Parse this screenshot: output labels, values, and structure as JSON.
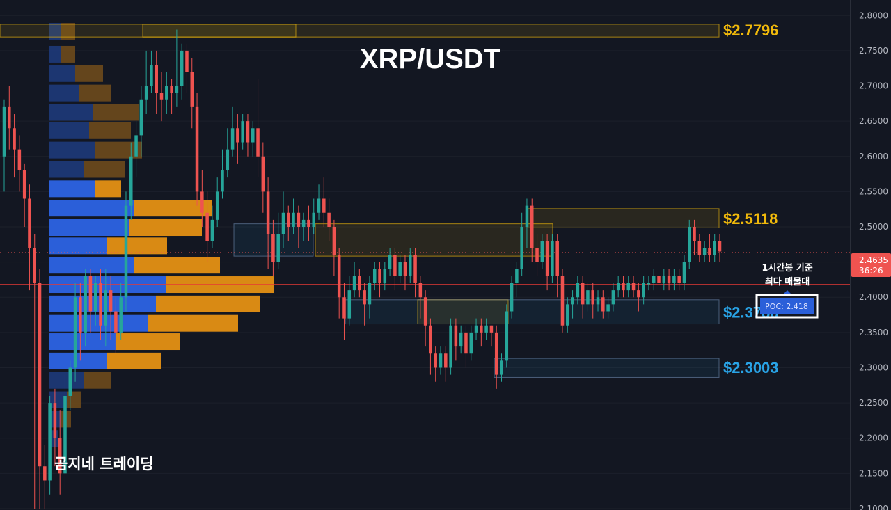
{
  "chart_data": {
    "type": "candlestick",
    "title": "XRP/USDT",
    "ylim": [
      2.098,
      2.822
    ],
    "y_ticks": [
      "2.8000",
      "2.7500",
      "2.7000",
      "2.6500",
      "2.6000",
      "2.5500",
      "2.5000",
      "2.4500",
      "2.4000",
      "2.3500",
      "2.3000",
      "2.2500",
      "2.2000",
      "2.1500",
      "2.1000"
    ],
    "current_price": {
      "value": 2.4635,
      "label": "2.4635",
      "countdown": "36:26"
    },
    "levels": [
      {
        "value": 2.7796,
        "label": "$2.7796",
        "color": "#f0b90b"
      },
      {
        "value": 2.5118,
        "label": "$2.5118",
        "color": "#f0b90b"
      },
      {
        "value": 2.3788,
        "label": "$2.3788",
        "color": "#29a3e6"
      },
      {
        "value": 2.3003,
        "label": "$2.3003",
        "color": "#29a3e6"
      }
    ],
    "poc": {
      "value": 2.418,
      "label": "POC: 2.418"
    },
    "poc_note": [
      "1시간봉 기준",
      "최다 매물대"
    ],
    "watermark": "곰지네 트레이딩",
    "zones": [
      {
        "type": "supply",
        "x0": 0,
        "x1": 425,
        "y0": 2.7695,
        "y1": 2.7875
      },
      {
        "type": "supply",
        "x0": 205,
        "x1": 1033,
        "y0": 2.7695,
        "y1": 2.7875
      },
      {
        "type": "supply",
        "x0": 757,
        "x1": 1033,
        "y0": 2.4986,
        "y1": 2.5258
      },
      {
        "type": "supply",
        "x0": 453,
        "x1": 794,
        "y0": 2.4584,
        "y1": 2.5043
      },
      {
        "type": "demand",
        "x0": 336,
        "x1": 450,
        "y0": 2.4584,
        "y1": 2.5043
      },
      {
        "type": "supply",
        "x0": 600,
        "x1": 730,
        "y0": 2.3622,
        "y1": 2.3965
      },
      {
        "type": "demand",
        "x0": 496,
        "x1": 1033,
        "y0": 2.3622,
        "y1": 2.3965
      },
      {
        "type": "demand",
        "x0": 710,
        "x1": 1033,
        "y0": 2.2862,
        "y1": 2.3132
      }
    ],
    "volume_profile": [
      {
        "price": 2.7775,
        "buy": 18,
        "sell": 20
      },
      {
        "price": 2.745,
        "buy": 18,
        "sell": 20
      },
      {
        "price": 2.7175,
        "buy": 38,
        "sell": 40
      },
      {
        "price": 2.69,
        "buy": 44,
        "sell": 46
      },
      {
        "price": 2.6625,
        "buy": 64,
        "sell": 66
      },
      {
        "price": 2.6365,
        "buy": 58,
        "sell": 60
      },
      {
        "price": 2.609,
        "buy": 66,
        "sell": 68
      },
      {
        "price": 2.5815,
        "buy": 50,
        "sell": 60
      },
      {
        "price": 2.554,
        "buy": 66,
        "sell": 38
      },
      {
        "price": 2.5265,
        "buy": 122,
        "sell": 112
      },
      {
        "price": 2.499,
        "buy": 116,
        "sell": 104
      },
      {
        "price": 2.473,
        "buy": 84,
        "sell": 86
      },
      {
        "price": 2.4455,
        "buy": 122,
        "sell": 124
      },
      {
        "price": 2.418,
        "buy": 168,
        "sell": 156
      },
      {
        "price": 2.3905,
        "buy": 154,
        "sell": 150
      },
      {
        "price": 2.363,
        "buy": 142,
        "sell": 130
      },
      {
        "price": 2.337,
        "buy": 96,
        "sell": 92
      },
      {
        "price": 2.3095,
        "buy": 84,
        "sell": 78
      },
      {
        "price": 2.282,
        "buy": 50,
        "sell": 40
      },
      {
        "price": 2.2545,
        "buy": 26,
        "sell": 20
      },
      {
        "price": 2.227,
        "buy": 18,
        "sell": 14
      },
      {
        "price": 2.1995,
        "buy": 14,
        "sell": 0
      }
    ],
    "candles": [
      [
        2.6,
        2.67,
        2.55,
        2.68
      ],
      [
        2.67,
        2.64,
        2.61,
        2.7
      ],
      [
        2.64,
        2.61,
        2.57,
        2.66
      ],
      [
        2.61,
        2.58,
        2.55,
        2.63
      ],
      [
        2.58,
        2.54,
        2.5,
        2.59
      ],
      [
        2.54,
        2.47,
        2.41,
        2.56
      ],
      [
        2.47,
        2.42,
        2.1,
        2.49
      ],
      [
        2.42,
        2.16,
        2.1,
        2.44
      ],
      [
        2.16,
        2.14,
        2.1,
        2.19
      ],
      [
        2.14,
        2.25,
        2.12,
        2.26
      ],
      [
        2.25,
        2.2,
        2.16,
        2.27
      ],
      [
        2.2,
        2.15,
        2.12,
        2.24
      ],
      [
        2.15,
        2.26,
        2.13,
        2.29
      ],
      [
        2.26,
        2.3,
        2.24,
        2.31
      ],
      [
        2.3,
        2.4,
        2.28,
        2.42
      ],
      [
        2.4,
        2.35,
        2.31,
        2.42
      ],
      [
        2.35,
        2.43,
        2.33,
        2.44
      ],
      [
        2.43,
        2.38,
        2.35,
        2.44
      ],
      [
        2.38,
        2.42,
        2.36,
        2.43
      ],
      [
        2.42,
        2.36,
        2.34,
        2.44
      ],
      [
        2.36,
        2.41,
        2.33,
        2.44
      ],
      [
        2.41,
        2.38,
        2.34,
        2.43
      ],
      [
        2.38,
        2.35,
        2.32,
        2.4
      ],
      [
        2.35,
        2.4,
        2.34,
        2.42
      ],
      [
        2.4,
        2.53,
        2.38,
        2.55
      ],
      [
        2.53,
        2.6,
        2.51,
        2.62
      ],
      [
        2.6,
        2.63,
        2.57,
        2.65
      ],
      [
        2.63,
        2.68,
        2.6,
        2.7
      ],
      [
        2.68,
        2.7,
        2.66,
        2.75
      ],
      [
        2.7,
        2.73,
        2.69,
        2.75
      ],
      [
        2.73,
        2.69,
        2.66,
        2.75
      ],
      [
        2.69,
        2.68,
        2.65,
        2.72
      ],
      [
        2.68,
        2.7,
        2.66,
        2.72
      ],
      [
        2.7,
        2.69,
        2.66,
        2.71
      ],
      [
        2.69,
        2.7,
        2.67,
        2.78
      ],
      [
        2.7,
        2.75,
        2.68,
        2.76
      ],
      [
        2.75,
        2.72,
        2.69,
        2.76
      ],
      [
        2.72,
        2.67,
        2.64,
        2.74
      ],
      [
        2.67,
        2.55,
        2.53,
        2.69
      ],
      [
        2.55,
        2.52,
        2.5,
        2.58
      ],
      [
        2.52,
        2.48,
        2.45,
        2.55
      ],
      [
        2.48,
        2.51,
        2.47,
        2.53
      ],
      [
        2.51,
        2.55,
        2.5,
        2.57
      ],
      [
        2.55,
        2.58,
        2.54,
        2.61
      ],
      [
        2.58,
        2.61,
        2.57,
        2.64
      ],
      [
        2.61,
        2.64,
        2.6,
        2.67
      ],
      [
        2.64,
        2.62,
        2.59,
        2.66
      ],
      [
        2.62,
        2.65,
        2.61,
        2.66
      ],
      [
        2.65,
        2.62,
        2.6,
        2.66
      ],
      [
        2.62,
        2.64,
        2.6,
        2.65
      ],
      [
        2.64,
        2.6,
        2.57,
        2.71
      ],
      [
        2.6,
        2.55,
        2.52,
        2.62
      ],
      [
        2.55,
        2.49,
        2.44,
        2.57
      ],
      [
        2.49,
        2.45,
        2.43,
        2.51
      ],
      [
        2.45,
        2.49,
        2.44,
        2.52
      ],
      [
        2.49,
        2.52,
        2.47,
        2.55
      ],
      [
        2.52,
        2.5,
        2.48,
        2.53
      ],
      [
        2.5,
        2.52,
        2.49,
        2.54
      ],
      [
        2.52,
        2.5,
        2.47,
        2.53
      ],
      [
        2.5,
        2.51,
        2.48,
        2.52
      ],
      [
        2.51,
        2.5,
        2.48,
        2.53
      ],
      [
        2.5,
        2.52,
        2.49,
        2.54
      ],
      [
        2.52,
        2.54,
        2.51,
        2.56
      ],
      [
        2.54,
        2.52,
        2.5,
        2.57
      ],
      [
        2.52,
        2.5,
        2.48,
        2.54
      ],
      [
        2.5,
        2.46,
        2.43,
        2.51
      ],
      [
        2.46,
        2.4,
        2.37,
        2.47
      ],
      [
        2.4,
        2.37,
        2.34,
        2.42
      ],
      [
        2.37,
        2.41,
        2.36,
        2.43
      ],
      [
        2.41,
        2.43,
        2.4,
        2.45
      ],
      [
        2.43,
        2.41,
        2.4,
        2.44
      ],
      [
        2.41,
        2.39,
        2.36,
        2.42
      ],
      [
        2.39,
        2.42,
        2.37,
        2.43
      ],
      [
        2.42,
        2.44,
        2.41,
        2.45
      ],
      [
        2.44,
        2.42,
        2.4,
        2.45
      ],
      [
        2.42,
        2.44,
        2.41,
        2.45
      ],
      [
        2.44,
        2.46,
        2.43,
        2.47
      ],
      [
        2.46,
        2.43,
        2.41,
        2.47
      ],
      [
        2.43,
        2.45,
        2.42,
        2.46
      ],
      [
        2.45,
        2.43,
        2.41,
        2.46
      ],
      [
        2.43,
        2.46,
        2.42,
        2.47
      ],
      [
        2.46,
        2.42,
        2.4,
        2.47
      ],
      [
        2.42,
        2.4,
        2.37,
        2.43
      ],
      [
        2.4,
        2.36,
        2.33,
        2.41
      ],
      [
        2.36,
        2.32,
        2.29,
        2.37
      ],
      [
        2.32,
        2.3,
        2.28,
        2.33
      ],
      [
        2.3,
        2.32,
        2.29,
        2.33
      ],
      [
        2.32,
        2.3,
        2.28,
        2.33
      ],
      [
        2.3,
        2.36,
        2.29,
        2.37
      ],
      [
        2.36,
        2.33,
        2.31,
        2.37
      ],
      [
        2.33,
        2.35,
        2.32,
        2.36
      ],
      [
        2.35,
        2.32,
        2.3,
        2.36
      ],
      [
        2.32,
        2.35,
        2.31,
        2.36
      ],
      [
        2.35,
        2.36,
        2.34,
        2.37
      ],
      [
        2.36,
        2.35,
        2.33,
        2.37
      ],
      [
        2.35,
        2.36,
        2.34,
        2.37
      ],
      [
        2.36,
        2.35,
        2.33,
        2.36
      ],
      [
        2.35,
        2.29,
        2.27,
        2.36
      ],
      [
        2.29,
        2.31,
        2.28,
        2.32
      ],
      [
        2.31,
        2.38,
        2.3,
        2.39
      ],
      [
        2.38,
        2.42,
        2.37,
        2.43
      ],
      [
        2.42,
        2.44,
        2.4,
        2.45
      ],
      [
        2.44,
        2.5,
        2.43,
        2.52
      ],
      [
        2.5,
        2.53,
        2.47,
        2.54
      ],
      [
        2.53,
        2.47,
        2.45,
        2.54
      ],
      [
        2.47,
        2.45,
        2.43,
        2.49
      ],
      [
        2.45,
        2.48,
        2.44,
        2.49
      ],
      [
        2.48,
        2.43,
        2.41,
        2.49
      ],
      [
        2.43,
        2.48,
        2.42,
        2.49
      ],
      [
        2.48,
        2.43,
        2.4,
        2.49
      ],
      [
        2.43,
        2.36,
        2.35,
        2.44
      ],
      [
        2.36,
        2.39,
        2.35,
        2.4
      ],
      [
        2.39,
        2.4,
        2.37,
        2.41
      ],
      [
        2.4,
        2.42,
        2.39,
        2.43
      ],
      [
        2.42,
        2.39,
        2.37,
        2.43
      ],
      [
        2.39,
        2.41,
        2.38,
        2.42
      ],
      [
        2.41,
        2.39,
        2.37,
        2.42
      ],
      [
        2.39,
        2.4,
        2.38,
        2.41
      ],
      [
        2.4,
        2.38,
        2.37,
        2.41
      ],
      [
        2.38,
        2.39,
        2.37,
        2.4
      ],
      [
        2.39,
        2.41,
        2.38,
        2.42
      ],
      [
        2.41,
        2.42,
        2.4,
        2.43
      ],
      [
        2.42,
        2.41,
        2.4,
        2.43
      ],
      [
        2.41,
        2.42,
        2.4,
        2.43
      ],
      [
        2.42,
        2.41,
        2.4,
        2.43
      ],
      [
        2.41,
        2.4,
        2.38,
        2.42
      ],
      [
        2.4,
        2.42,
        2.39,
        2.43
      ],
      [
        2.42,
        2.42,
        2.41,
        2.43
      ],
      [
        2.42,
        2.43,
        2.41,
        2.44
      ],
      [
        2.43,
        2.42,
        2.41,
        2.44
      ],
      [
        2.42,
        2.43,
        2.41,
        2.44
      ],
      [
        2.43,
        2.42,
        2.41,
        2.44
      ],
      [
        2.42,
        2.43,
        2.41,
        2.44
      ],
      [
        2.43,
        2.42,
        2.41,
        2.44
      ],
      [
        2.42,
        2.45,
        2.41,
        2.46
      ],
      [
        2.45,
        2.5,
        2.44,
        2.51
      ],
      [
        2.5,
        2.48,
        2.46,
        2.51
      ],
      [
        2.48,
        2.46,
        2.45,
        2.49
      ],
      [
        2.46,
        2.47,
        2.45,
        2.48
      ],
      [
        2.47,
        2.46,
        2.45,
        2.49
      ],
      [
        2.46,
        2.48,
        2.45,
        2.49
      ],
      [
        2.48,
        2.465,
        2.45,
        2.49
      ]
    ]
  },
  "colors": {
    "bg": "#131722",
    "up": "#26a69a",
    "down": "#ef5350",
    "poc_line": "#e53935",
    "buy": "#2b5fd9",
    "sell": "#d98a14",
    "gold": "#f0b90b",
    "cyan": "#29a3e6"
  }
}
